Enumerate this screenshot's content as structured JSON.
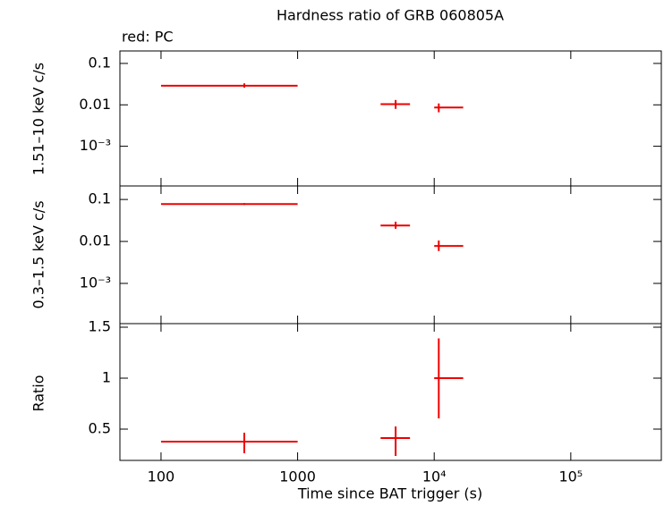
{
  "chart_data": [
    {
      "type": "errorbar",
      "title": "Hardness ratio of GRB 060805A",
      "subtitle": "red: PC",
      "ylabel": "1.51–10 keV c/s",
      "color": "#ee0000",
      "xscale": "log",
      "yscale": "log",
      "xlim": [
        50,
        460000
      ],
      "ylim": [
        0.00011,
        0.2
      ],
      "xticks": [
        100,
        1000,
        10000,
        100000
      ],
      "yticks": [
        0.1,
        0.01,
        {
          "value": 0.001,
          "label": "10⁻³"
        }
      ],
      "x": [
        407,
        5220,
        10800
      ],
      "x_low": [
        100,
        4050,
        10000
      ],
      "x_high": [
        1000,
        6650,
        16300
      ],
      "values": [
        0.029,
        0.0104,
        0.0086
      ],
      "y_low": [
        0.026,
        0.008,
        0.0066
      ],
      "y_high": [
        0.033,
        0.0131,
        0.0108
      ]
    },
    {
      "type": "errorbar",
      "ylabel": "0.3–1.5 keV c/s",
      "color": "#ee0000",
      "xscale": "log",
      "yscale": "log",
      "xlim": [
        50,
        460000
      ],
      "ylim": [
        0.00011,
        0.21
      ],
      "xticks": [
        100,
        1000,
        10000,
        100000
      ],
      "yticks": [
        0.1,
        0.01,
        {
          "value": 0.001,
          "label": "10⁻³"
        }
      ],
      "x": [
        407,
        5220,
        10800
      ],
      "x_low": [
        100,
        4050,
        10000
      ],
      "x_high": [
        1000,
        6650,
        16300
      ],
      "values": [
        0.078,
        0.024,
        0.0078
      ],
      "y_low": [
        0.074,
        0.02,
        0.0059
      ],
      "y_high": [
        0.082,
        0.0295,
        0.0105
      ]
    },
    {
      "type": "errorbar",
      "ylabel": "Ratio",
      "xlabel": "Time since BAT trigger (s)",
      "color": "#ee0000",
      "xscale": "log",
      "yscale": "linear",
      "xlim": [
        50,
        460000
      ],
      "ylim": [
        0.193,
        1.535
      ],
      "xticks": [
        100,
        1000,
        {
          "value": 10000,
          "label": "10⁴"
        },
        {
          "value": 100000,
          "label": "10⁵"
        }
      ],
      "yticks": [
        1.5,
        1,
        0.5
      ],
      "x": [
        407,
        5220,
        10800
      ],
      "x_low": [
        100,
        4050,
        10000
      ],
      "x_high": [
        1000,
        6650,
        16300
      ],
      "values": [
        0.377,
        0.412,
        1.0
      ],
      "y_low": [
        0.263,
        0.237,
        0.605
      ],
      "y_high": [
        0.465,
        0.526,
        1.39
      ]
    }
  ]
}
